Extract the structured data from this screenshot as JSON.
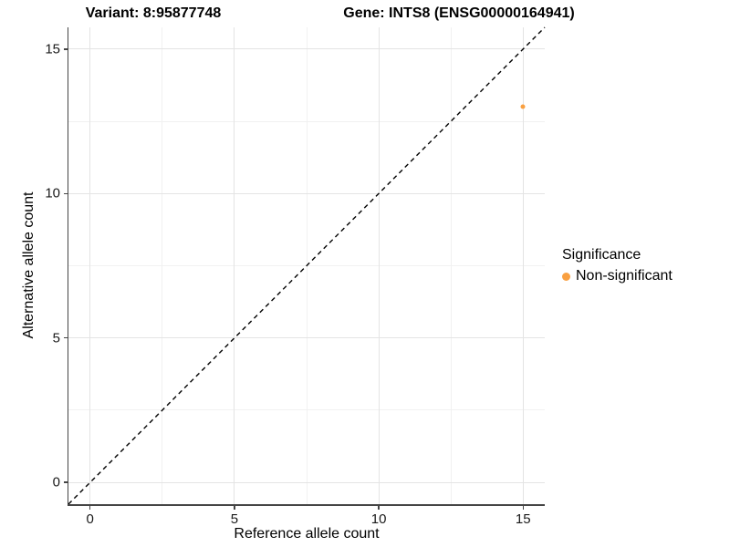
{
  "header": {
    "variant_title": "Variant: 8:95877748",
    "gene_title": "Gene: INTS8 (ENSG00000164941)"
  },
  "colors": {
    "point": "#F9A041",
    "identity_line": "#000000",
    "grid_major": "#E4E4E4",
    "grid_minor": "#F1F1F1",
    "axis_line": "#454545",
    "tick_text": "#1A1A1A"
  },
  "chart_data": {
    "type": "scatter",
    "titles": {
      "variant": "Variant: 8:95877748",
      "gene": "Gene: INTS8 (ENSG00000164941)"
    },
    "xlabel": "Reference allele count",
    "ylabel": "Alternative allele count",
    "xlim": [
      -0.75,
      15.75
    ],
    "ylim": [
      -0.75,
      15.75
    ],
    "x_ticks": [
      0,
      5,
      10,
      15
    ],
    "y_ticks": [
      0,
      5,
      10,
      15
    ],
    "x_minor_ticks": [
      2.5,
      7.5,
      12.5
    ],
    "y_minor_ticks": [
      2.5,
      7.5,
      12.5
    ],
    "grid": true,
    "legend_position": "right",
    "legend": {
      "title": "Significance",
      "items": [
        {
          "label": "Non-significant",
          "color": "#F9A041"
        }
      ]
    },
    "series": [
      {
        "name": "Non-significant",
        "color": "#F9A041",
        "points": [
          {
            "x": 15,
            "y": 13
          }
        ]
      }
    ],
    "identity_line": {
      "slope": 1,
      "intercept": 0,
      "style": "dashed",
      "color": "#000000"
    }
  }
}
